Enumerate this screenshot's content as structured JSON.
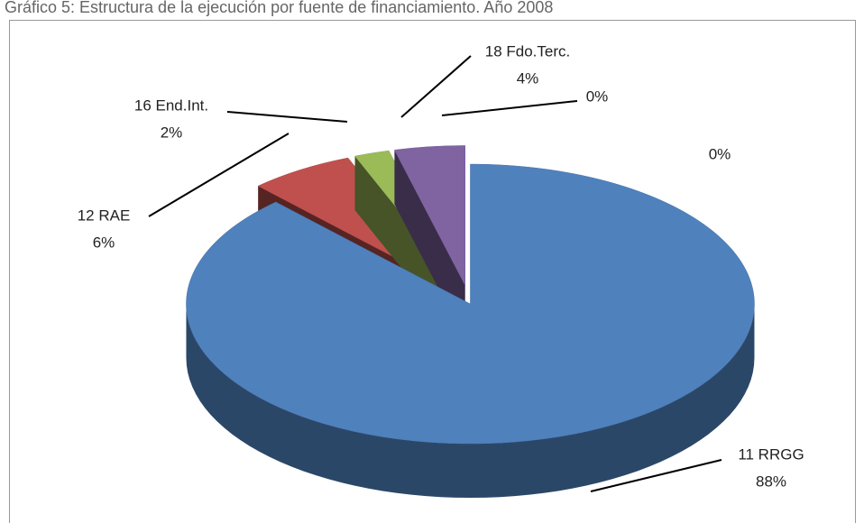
{
  "chart_data": {
    "type": "pie3d",
    "title": "Gráfico 5: Estructura de la ejecución por fuente de financiamiento. Año 2008",
    "categories": [
      "11 RRGG",
      "12 RAE",
      "16 End.Int.",
      "18 Fdo.Terc.",
      null,
      null
    ],
    "values": [
      88,
      6,
      2,
      4,
      0,
      0
    ],
    "value_labels": [
      "88%",
      "6%",
      "2%",
      "4%",
      "0%",
      "0%"
    ],
    "colors": [
      "#4f81bd",
      "#c0504d",
      "#9bbb59",
      "#8064a2",
      "#4bacc6",
      "#f79646"
    ]
  }
}
